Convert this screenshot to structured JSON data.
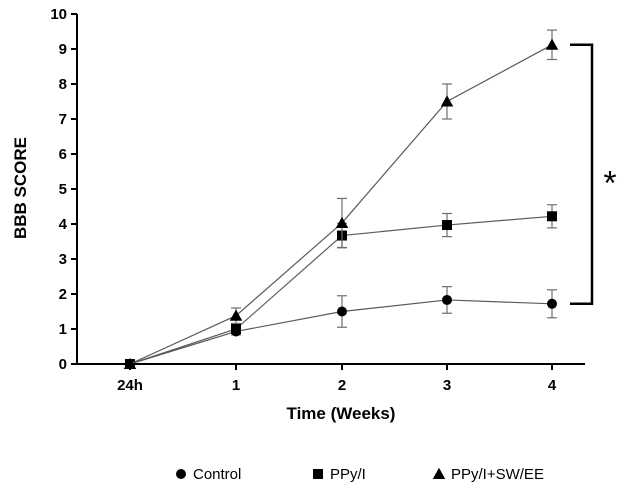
{
  "chart_data": {
    "type": "line",
    "title": "",
    "xlabel": "Time (Weeks)",
    "ylabel": "BBB SCORE",
    "categories": [
      "24h",
      "1",
      "2",
      "3",
      "4"
    ],
    "ylim": [
      0,
      10
    ],
    "yticks": [
      "0",
      "1",
      "2",
      "3",
      "4",
      "5",
      "6",
      "7",
      "8",
      "9",
      "10"
    ],
    "grid": false,
    "legend_position": "bottom",
    "series": [
      {
        "name": "Control",
        "marker": "circle",
        "values": [
          0,
          0.93,
          1.5,
          1.83,
          1.72
        ],
        "err_low": [
          0,
          0.1,
          0.45,
          0.38,
          0.4
        ],
        "err_high": [
          0,
          0.1,
          0.45,
          0.38,
          0.4
        ]
      },
      {
        "name": "PPy/I",
        "marker": "square",
        "values": [
          0,
          1.0,
          3.67,
          3.97,
          4.22
        ],
        "err_low": [
          0,
          0.1,
          0.35,
          0.33,
          0.33
        ],
        "err_high": [
          0,
          0.1,
          0.35,
          0.33,
          0.33
        ]
      },
      {
        "name": "PPy/I+SW/EE",
        "marker": "triangle",
        "values": [
          0,
          1.38,
          4.03,
          7.5,
          9.12
        ],
        "err_low": [
          0,
          0.22,
          0.7,
          0.5,
          0.42
        ],
        "err_high": [
          0,
          0.22,
          0.7,
          0.5,
          0.42
        ]
      }
    ],
    "annotations": [
      {
        "text": "*",
        "between_series": [
          "PPy/I+SW/EE",
          "Control"
        ],
        "at_category": "4"
      }
    ],
    "colors": {
      "line": "#5a5a5a",
      "marker": "#000000",
      "axis": "#000000",
      "error_bar": "#6e6e6e"
    }
  }
}
